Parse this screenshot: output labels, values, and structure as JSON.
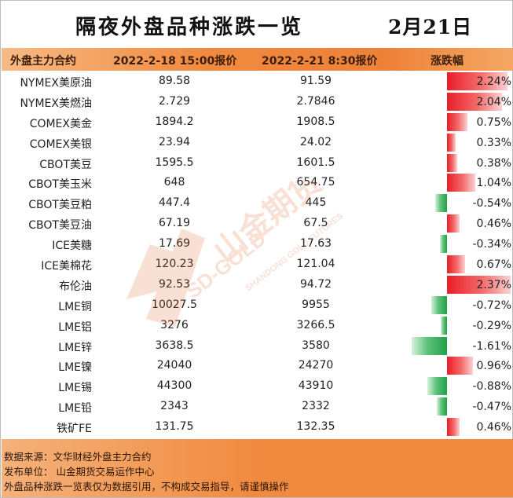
{
  "title": "隔夜外盘品种涨跌一览",
  "date": "2月21日",
  "headers": {
    "contract": "外盘主力合约",
    "price_a": "2022-2-18 15:00报价",
    "price_b": "2022-2-21 8:30报价",
    "change": "涨跌幅"
  },
  "rows": [
    {
      "name": "NYMEX美原油",
      "a": "89.58",
      "b": "91.59",
      "pct": "2.24%",
      "value": 2.24
    },
    {
      "name": "NYMEX美燃油",
      "a": "2.729",
      "b": "2.7846",
      "pct": "2.04%",
      "value": 2.04
    },
    {
      "name": "COMEX美金",
      "a": "1894.2",
      "b": "1908.5",
      "pct": "0.75%",
      "value": 0.75
    },
    {
      "name": "COMEX美银",
      "a": "23.94",
      "b": "24.02",
      "pct": "0.33%",
      "value": 0.33
    },
    {
      "name": "CBOT美豆",
      "a": "1595.5",
      "b": "1601.5",
      "pct": "0.38%",
      "value": 0.38
    },
    {
      "name": "CBOT美玉米",
      "a": "648",
      "b": "654.75",
      "pct": "1.04%",
      "value": 1.04
    },
    {
      "name": "CBOT美豆粕",
      "a": "447.4",
      "b": "445",
      "pct": "-0.54%",
      "value": -0.54
    },
    {
      "name": "CBOT美豆油",
      "a": "67.19",
      "b": "67.5",
      "pct": "0.46%",
      "value": 0.46
    },
    {
      "name": "ICE美糖",
      "a": "17.69",
      "b": "17.63",
      "pct": "-0.34%",
      "value": -0.34
    },
    {
      "name": "ICE美棉花",
      "a": "120.23",
      "b": "121.04",
      "pct": "0.67%",
      "value": 0.67
    },
    {
      "name": "布伦油",
      "a": "92.53",
      "b": "94.72",
      "pct": "2.37%",
      "value": 2.37
    },
    {
      "name": "LME铜",
      "a": "10027.5",
      "b": "9955",
      "pct": "-0.72%",
      "value": -0.72
    },
    {
      "name": "LME铝",
      "a": "3276",
      "b": "3266.5",
      "pct": "-0.29%",
      "value": -0.29
    },
    {
      "name": "LME锌",
      "a": "3638.5",
      "b": "3580",
      "pct": "-1.61%",
      "value": -1.61
    },
    {
      "name": "LME镍",
      "a": "24040",
      "b": "24270",
      "pct": "0.96%",
      "value": 0.96
    },
    {
      "name": "LME锡",
      "a": "44300",
      "b": "43910",
      "pct": "-0.88%",
      "value": -0.88
    },
    {
      "name": "LME铅",
      "a": "2343",
      "b": "2332",
      "pct": "-0.47%",
      "value": -0.47
    },
    {
      "name": "铁矿FE",
      "a": "131.75",
      "b": "132.35",
      "pct": "0.46%",
      "value": 0.46
    }
  ],
  "footer": {
    "source": "数据来源：文华财经外盘主力合约",
    "publisher": "发布单位：  山金期货交易运作中心",
    "disclaimer": "外盘品种涨跌一览表仅为数据引用，不构成交易指导，请谨慎操作"
  },
  "watermark": {
    "brand": "山金期货",
    "english": "SHANDONG GOLD FUTURES",
    "logo_text": "SD-GOLD"
  },
  "colors": {
    "positive": "#e81e28",
    "negative": "#1fa046",
    "header": "#f08a3f",
    "footer": "#f08a3f"
  }
}
